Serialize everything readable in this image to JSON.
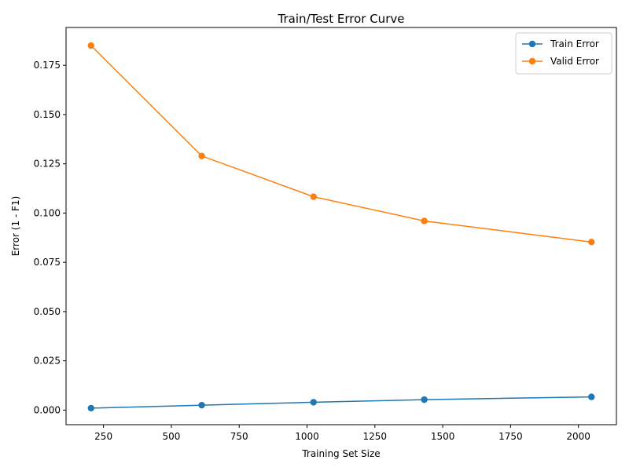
{
  "chart_data": {
    "type": "line",
    "title": "Train/Test Error Curve",
    "xlabel": "Training Set Size",
    "ylabel": "Error (1 - F1)",
    "x": [
      204,
      612,
      1024,
      1432,
      2048
    ],
    "series": [
      {
        "name": "Train Error",
        "color": "#1f77b4",
        "values": [
          0.001,
          0.0025,
          0.004,
          0.0053,
          0.0067
        ]
      },
      {
        "name": "Valid Error",
        "color": "#ff7f0e",
        "values": [
          0.185,
          0.129,
          0.1083,
          0.096,
          0.0853
        ]
      }
    ],
    "xlim": [
      112,
      2140
    ],
    "ylim": [
      -0.0074,
      0.1942
    ],
    "xticks": [
      250,
      500,
      750,
      1000,
      1250,
      1500,
      1750,
      2000
    ],
    "xtick_labels": [
      "250",
      "500",
      "750",
      "1000",
      "1250",
      "1500",
      "1750",
      "2000"
    ],
    "yticks": [
      0.0,
      0.025,
      0.05,
      0.075,
      0.1,
      0.125,
      0.15,
      0.175
    ],
    "ytick_labels": [
      "0.000",
      "0.025",
      "0.050",
      "0.075",
      "0.100",
      "0.125",
      "0.150",
      "0.175"
    ],
    "grid": false,
    "legend_position": "top-right",
    "marker": "circle"
  }
}
